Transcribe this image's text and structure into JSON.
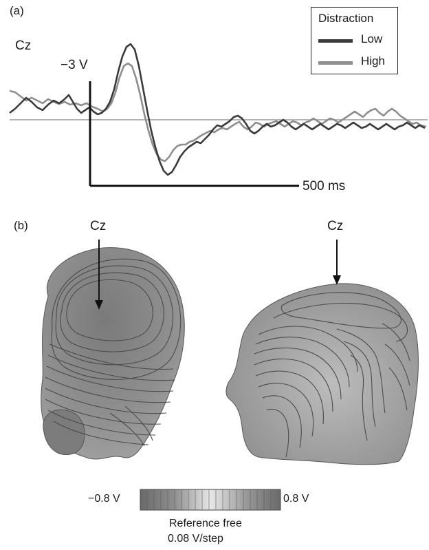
{
  "panel_a": {
    "label": "(a)",
    "electrode": "Cz",
    "amplitude_scale": "−3   V",
    "time_scale": "500 ms"
  },
  "legend": {
    "title": "Distraction",
    "items": [
      {
        "label": "Low",
        "color": "#3a3a3a"
      },
      {
        "label": "High",
        "color": "#8e8e8e"
      }
    ]
  },
  "panel_b": {
    "label": "(b)",
    "left_electrode": "Cz",
    "right_electrode": "Cz",
    "colorbar_min": "−0.8   V",
    "colorbar_max": "0.8   V",
    "reference": "Reference free",
    "step": "0.08   V/step"
  },
  "colors": {
    "low": "#3a3a3a",
    "high": "#8e8e8e",
    "baseline": "#9a9a9a",
    "head_fill": "#8c8c8c",
    "head_dark": "#6e6e6e",
    "contour": "#4a4a4a"
  }
}
